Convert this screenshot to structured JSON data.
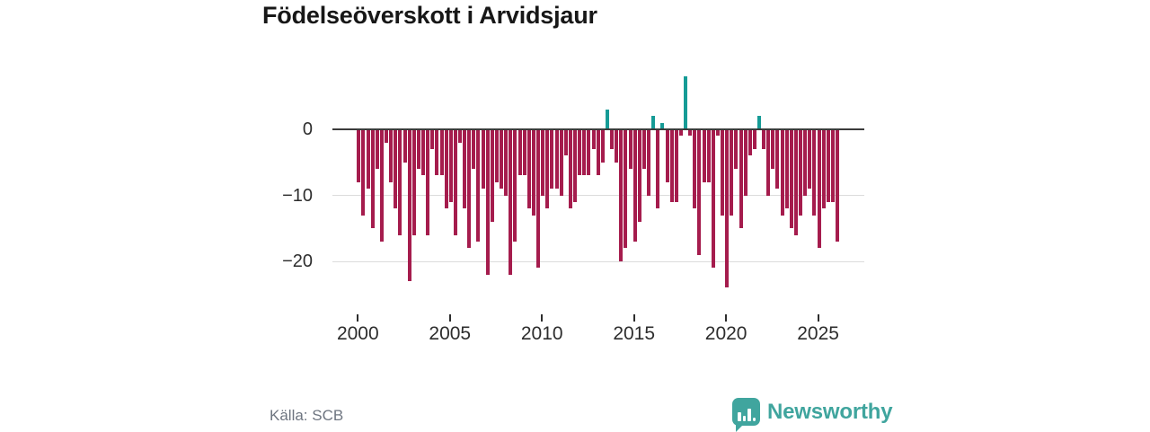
{
  "title": "Födelseöverskott i Arvidsjaur",
  "source": "Källa: SCB",
  "brand": {
    "name": "Newsworthy",
    "icon": "newsworthy-speech-bubble-chart-icon",
    "color": "#40A59E"
  },
  "colors": {
    "negative_bar": "#A51C4D",
    "positive_bar": "#169B96",
    "axis_line": "#3B3B3B",
    "gridline": "#DCDCDC",
    "tick_label": "#2D2D2D",
    "title_text": "#171717",
    "source_text": "#6E7580",
    "background": "#FFFFFF"
  },
  "chart_data": {
    "type": "bar",
    "title": "Födelseöverskott i Arvidsjaur",
    "xlabel": "",
    "ylabel": "",
    "frequency": "quarterly",
    "x_start": "2000Q1",
    "x_end": "2026Q1",
    "values": [
      -8,
      -13,
      -9,
      -15,
      -6,
      -17,
      -2,
      -8,
      -12,
      -16,
      -5,
      -23,
      -16,
      -6,
      -7,
      -16,
      -3,
      -7,
      -7,
      -12,
      -11,
      -16,
      -2,
      -12,
      -18,
      -6,
      -17,
      -9,
      -22,
      -14,
      -8,
      -9,
      -10,
      -22,
      -17,
      -7,
      -7,
      -12,
      -13,
      -21,
      -10,
      -12,
      -9,
      -9,
      -10,
      -4,
      -12,
      -11,
      -7,
      -7,
      -7,
      -3,
      -7,
      -5,
      3,
      -3,
      -5,
      -20,
      -18,
      -6,
      -17,
      -14,
      -6,
      -10,
      2,
      -12,
      1,
      -8,
      -11,
      -11,
      -1,
      8,
      -1,
      -12,
      -19,
      -8,
      -8,
      -21,
      -1,
      -13,
      -24,
      -13,
      -6,
      -15,
      -10,
      -4,
      -3,
      2,
      -3,
      -10,
      -6,
      -9,
      -13,
      -12,
      -15,
      -16,
      -13,
      -10,
      -9,
      -13,
      -18,
      -12,
      -11,
      -11,
      -17
    ],
    "yticks": [
      {
        "label": "0",
        "value": 0
      },
      {
        "label": "−10",
        "value": -10
      },
      {
        "label": "−20",
        "value": -20
      }
    ],
    "xticks": [
      {
        "label": "2000",
        "year": 2000
      },
      {
        "label": "2005",
        "year": 2005
      },
      {
        "label": "2010",
        "year": 2010
      },
      {
        "label": "2015",
        "year": 2015
      },
      {
        "label": "2020",
        "year": 2020
      },
      {
        "label": "2025",
        "year": 2025
      }
    ],
    "ylim": [
      -26,
      9
    ],
    "grid": "horizontal",
    "legend": "none"
  }
}
